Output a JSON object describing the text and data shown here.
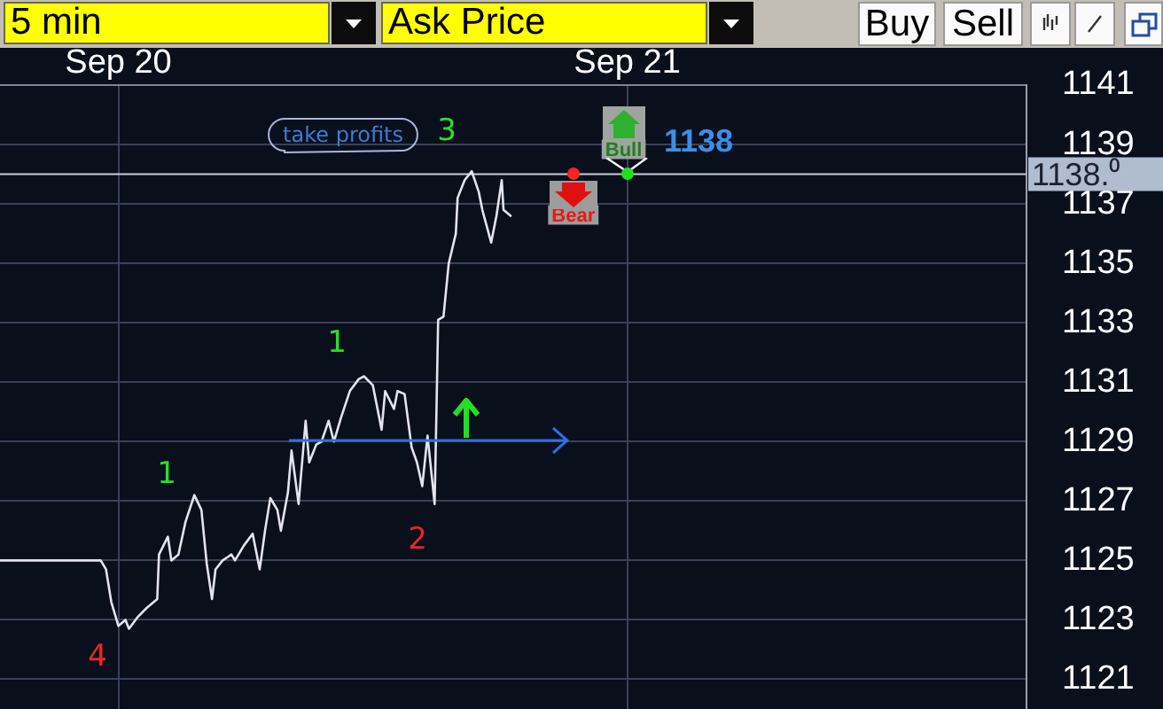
{
  "chart_data": {
    "type": "line",
    "x": [
      "--09-19T18:25",
      "--09-19T23:10",
      "--09-19T23:25",
      "--09-19T23:40",
      "--09-20T00:00",
      "--09-20T00:20",
      "--09-20T00:30",
      "--09-20T00:55",
      "--09-20T01:20",
      "--09-20T01:50",
      "--09-20T01:55",
      "--09-20T02:20",
      "--09-20T02:30",
      "--09-20T02:50",
      "--09-20T03:10",
      "--09-20T03:35",
      "--09-20T03:55",
      "--09-20T04:10",
      "--09-20T04:25",
      "--09-20T04:35",
      "--09-20T04:55",
      "--09-20T05:20",
      "--09-20T05:30",
      "--09-20T05:55",
      "--09-20T06:20",
      "--09-20T06:40",
      "--09-20T06:55",
      "--09-20T07:10",
      "--09-20T07:30",
      "--09-20T07:40",
      "--09-20T08:00",
      "--09-20T08:10",
      "--09-20T08:30",
      "--09-20T08:50",
      "--09-20T09:00",
      "--09-20T09:20",
      "--09-20T09:35",
      "--09-20T09:55",
      "--09-20T10:10",
      "--09-20T10:30",
      "--09-20T10:55",
      "--09-20T11:20",
      "--09-20T11:35",
      "--09-20T12:00",
      "--09-20T12:25",
      "--09-20T12:35",
      "--09-20T13:00",
      "--09-20T13:10",
      "--09-20T13:30",
      "--09-20T13:50",
      "--09-20T14:05",
      "--09-20T14:20",
      "--09-20T14:35",
      "--09-20T14:55",
      "--09-20T15:00",
      "--09-20T15:05",
      "--09-20T15:20",
      "--09-20T15:35",
      "--09-20T15:55",
      "--09-20T16:00",
      "--09-20T16:20",
      "--09-20T16:40",
      "--09-20T17:00",
      "--09-20T17:10",
      "--09-20T17:35",
      "--09-20T17:50",
      "--09-20T18:05",
      "--09-20T18:10",
      "--09-20T18:30"
    ],
    "values": [
      1125.0,
      1125.0,
      1124.7,
      1123.6,
      1122.8,
      1123.0,
      1122.7,
      1123.1,
      1123.4,
      1123.7,
      1125.2,
      1125.8,
      1125.0,
      1125.2,
      1126.3,
      1127.2,
      1126.7,
      1124.9,
      1123.7,
      1124.7,
      1125.0,
      1125.2,
      1125.0,
      1125.5,
      1125.9,
      1124.7,
      1126.0,
      1127.1,
      1126.7,
      1126.0,
      1127.3,
      1128.7,
      1126.9,
      1129.7,
      1128.3,
      1128.9,
      1129.0,
      1129.7,
      1129.0,
      1129.8,
      1130.7,
      1131.1,
      1131.2,
      1130.9,
      1129.4,
      1130.7,
      1130.1,
      1130.7,
      1130.6,
      1128.8,
      1128.3,
      1127.5,
      1129.2,
      1126.9,
      1129.9,
      1133.1,
      1133.2,
      1135.0,
      1136.0,
      1137.2,
      1137.8,
      1138.1,
      1137.4,
      1136.8,
      1135.7,
      1136.6,
      1137.8,
      1136.8,
      1136.6
    ],
    "color": "#e4e4ee",
    "xlim": [
      "--09-19T18:25",
      "--09-21T18:50"
    ],
    "xticks": [
      {
        "value": "--09-20",
        "label": "Sep 20"
      },
      {
        "value": "--09-21",
        "label": "Sep 21"
      }
    ],
    "ylim": [
      1120,
      1141
    ],
    "yticks": [
      1121,
      1123,
      1125,
      1127,
      1129,
      1131,
      1133,
      1135,
      1137,
      1139,
      1141
    ],
    "grid": true,
    "marker": "none",
    "line_style": "solid",
    "ref_lines": [
      {
        "axis": "y",
        "value": 1138,
        "label": "1138.⁰",
        "color": "#c8cedc"
      }
    ],
    "annotations": [
      "5 min",
      "Ask Price",
      "Buy",
      "Sell",
      "take profits",
      "3",
      "1",
      "1",
      "2",
      "4",
      "1138",
      {
        "text": "Bear",
        "x": "--09-20T21:25",
        "y": 1138
      },
      {
        "text": "Bull",
        "x": "--09-21T00:00",
        "y": 1138
      }
    ]
  }
}
